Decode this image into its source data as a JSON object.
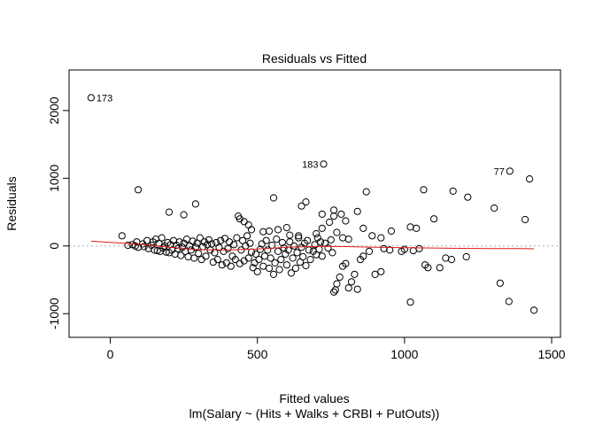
{
  "chart_data": {
    "type": "scatter",
    "title": "Residuals vs Fitted",
    "xlabel": "Fitted values",
    "subtitle": "lm(Salary ~ (Hits + Walks + CRBI + PutOuts))",
    "ylabel": "Residuals",
    "xlim": [
      -140,
      1530
    ],
    "ylim": [
      -1350,
      2600
    ],
    "x_ticks": [
      0,
      500,
      1000,
      1500
    ],
    "y_ticks": [
      -1000,
      0,
      1000,
      2000
    ],
    "x_tick_labels": [
      "0",
      "500",
      "1000",
      "1500"
    ],
    "y_tick_labels": [
      "-1000",
      "0",
      "1000",
      "2000"
    ],
    "zero_line": 0,
    "point_labels": [
      {
        "text": "173",
        "x": -65,
        "y": 2190
      },
      {
        "text": "183",
        "x": 725,
        "y": 1210
      },
      {
        "text": "77",
        "x": 1358,
        "y": 1105
      }
    ],
    "smooth": [
      [
        -65,
        70
      ],
      [
        100,
        25
      ],
      [
        200,
        -20
      ],
      [
        300,
        -55
      ],
      [
        400,
        -60
      ],
      [
        500,
        -45
      ],
      [
        600,
        -20
      ],
      [
        700,
        -5
      ],
      [
        800,
        -10
      ],
      [
        900,
        -20
      ],
      [
        1000,
        -25
      ],
      [
        1100,
        -30
      ],
      [
        1200,
        -35
      ],
      [
        1300,
        -38
      ],
      [
        1400,
        -40
      ],
      [
        1440,
        -42
      ]
    ],
    "colors": {
      "points": "#000000",
      "smooth": "#e41a1c",
      "zero_line": "#bdbdbd",
      "axis": "#000000"
    },
    "points": [
      [
        -65,
        2190
      ],
      [
        725,
        1210
      ],
      [
        1358,
        1105
      ],
      [
        95,
        830
      ],
      [
        1065,
        830
      ],
      [
        1165,
        810
      ],
      [
        870,
        800
      ],
      [
        1215,
        720
      ],
      [
        1425,
        990
      ],
      [
        1305,
        560
      ],
      [
        1100,
        400
      ],
      [
        1410,
        390
      ],
      [
        200,
        500
      ],
      [
        250,
        460
      ],
      [
        290,
        620
      ],
      [
        555,
        710
      ],
      [
        665,
        650
      ],
      [
        650,
        590
      ],
      [
        760,
        530
      ],
      [
        785,
        470
      ],
      [
        840,
        510
      ],
      [
        760,
        440
      ],
      [
        720,
        470
      ],
      [
        745,
        350
      ],
      [
        800,
        370
      ],
      [
        860,
        260
      ],
      [
        955,
        220
      ],
      [
        1020,
        280
      ],
      [
        1040,
        260
      ],
      [
        435,
        440
      ],
      [
        455,
        360
      ],
      [
        440,
        400
      ],
      [
        470,
        310
      ],
      [
        480,
        240
      ],
      [
        600,
        270
      ],
      [
        570,
        240
      ],
      [
        540,
        220
      ],
      [
        520,
        210
      ],
      [
        610,
        160
      ],
      [
        640,
        150
      ],
      [
        700,
        180
      ],
      [
        720,
        260
      ],
      [
        770,
        200
      ],
      [
        790,
        120
      ],
      [
        810,
        100
      ],
      [
        890,
        150
      ],
      [
        920,
        120
      ],
      [
        1000,
        -50
      ],
      [
        1030,
        -70
      ],
      [
        1050,
        -40
      ],
      [
        40,
        150
      ],
      [
        60,
        10
      ],
      [
        75,
        20
      ],
      [
        85,
        0
      ],
      [
        90,
        60
      ],
      [
        95,
        -20
      ],
      [
        110,
        30
      ],
      [
        115,
        -10
      ],
      [
        125,
        80
      ],
      [
        130,
        -40
      ],
      [
        140,
        10
      ],
      [
        145,
        60
      ],
      [
        150,
        -60
      ],
      [
        155,
        100
      ],
      [
        160,
        -70
      ],
      [
        165,
        40
      ],
      [
        170,
        -80
      ],
      [
        175,
        120
      ],
      [
        180,
        -30
      ],
      [
        185,
        0
      ],
      [
        190,
        -90
      ],
      [
        195,
        50
      ],
      [
        200,
        -100
      ],
      [
        205,
        20
      ],
      [
        210,
        -60
      ],
      [
        215,
        80
      ],
      [
        220,
        -120
      ],
      [
        225,
        10
      ],
      [
        230,
        -40
      ],
      [
        235,
        60
      ],
      [
        240,
        -140
      ],
      [
        245,
        -20
      ],
      [
        250,
        40
      ],
      [
        255,
        -80
      ],
      [
        260,
        100
      ],
      [
        265,
        -160
      ],
      [
        270,
        0
      ],
      [
        275,
        -60
      ],
      [
        280,
        70
      ],
      [
        285,
        -180
      ],
      [
        290,
        -20
      ],
      [
        295,
        40
      ],
      [
        300,
        -110
      ],
      [
        305,
        120
      ],
      [
        310,
        -200
      ],
      [
        315,
        -10
      ],
      [
        320,
        60
      ],
      [
        325,
        -150
      ],
      [
        330,
        20
      ],
      [
        335,
        90
      ],
      [
        340,
        -60
      ],
      [
        345,
        30
      ],
      [
        350,
        -240
      ],
      [
        355,
        -100
      ],
      [
        360,
        50
      ],
      [
        365,
        -200
      ],
      [
        370,
        -20
      ],
      [
        375,
        80
      ],
      [
        380,
        -280
      ],
      [
        385,
        -80
      ],
      [
        390,
        110
      ],
      [
        395,
        -250
      ],
      [
        400,
        -40
      ],
      [
        405,
        60
      ],
      [
        410,
        -300
      ],
      [
        415,
        -150
      ],
      [
        420,
        20
      ],
      [
        425,
        -200
      ],
      [
        430,
        120
      ],
      [
        440,
        -260
      ],
      [
        445,
        -60
      ],
      [
        450,
        80
      ],
      [
        455,
        -220
      ],
      [
        460,
        0
      ],
      [
        465,
        150
      ],
      [
        470,
        -180
      ],
      [
        475,
        40
      ],
      [
        480,
        -90
      ],
      [
        485,
        -320
      ],
      [
        490,
        -250
      ],
      [
        495,
        -120
      ],
      [
        500,
        -380
      ],
      [
        505,
        -200
      ],
      [
        510,
        -50
      ],
      [
        515,
        30
      ],
      [
        520,
        -300
      ],
      [
        525,
        -150
      ],
      [
        530,
        80
      ],
      [
        535,
        -60
      ],
      [
        540,
        -330
      ],
      [
        545,
        -180
      ],
      [
        550,
        10
      ],
      [
        555,
        -420
      ],
      [
        560,
        -250
      ],
      [
        565,
        100
      ],
      [
        570,
        -80
      ],
      [
        575,
        -350
      ],
      [
        580,
        -200
      ],
      [
        585,
        50
      ],
      [
        590,
        -30
      ],
      [
        595,
        -120
      ],
      [
        600,
        -280
      ],
      [
        605,
        -60
      ],
      [
        610,
        60
      ],
      [
        615,
        -400
      ],
      [
        620,
        -180
      ],
      [
        625,
        0
      ],
      [
        630,
        -330
      ],
      [
        635,
        -100
      ],
      [
        640,
        120
      ],
      [
        645,
        -240
      ],
      [
        650,
        -20
      ],
      [
        655,
        -160
      ],
      [
        660,
        40
      ],
      [
        665,
        -290
      ],
      [
        670,
        80
      ],
      [
        675,
        -60
      ],
      [
        680,
        -200
      ],
      [
        690,
        -80
      ],
      [
        695,
        20
      ],
      [
        700,
        -130
      ],
      [
        705,
        120
      ],
      [
        710,
        -50
      ],
      [
        715,
        60
      ],
      [
        720,
        -150
      ],
      [
        730,
        40
      ],
      [
        740,
        -30
      ],
      [
        750,
        90
      ],
      [
        755,
        -100
      ],
      [
        760,
        -680
      ],
      [
        765,
        -650
      ],
      [
        770,
        -560
      ],
      [
        780,
        -460
      ],
      [
        790,
        -300
      ],
      [
        800,
        -260
      ],
      [
        810,
        -620
      ],
      [
        820,
        -530
      ],
      [
        830,
        -420
      ],
      [
        840,
        -640
      ],
      [
        850,
        -200
      ],
      [
        860,
        -150
      ],
      [
        880,
        -80
      ],
      [
        900,
        -420
      ],
      [
        920,
        -380
      ],
      [
        930,
        -40
      ],
      [
        950,
        -60
      ],
      [
        990,
        -80
      ],
      [
        1020,
        -830
      ],
      [
        1070,
        -280
      ],
      [
        1080,
        -320
      ],
      [
        1120,
        -320
      ],
      [
        1140,
        -180
      ],
      [
        1160,
        -200
      ],
      [
        1210,
        -160
      ],
      [
        1325,
        -550
      ],
      [
        1355,
        -820
      ],
      [
        1440,
        -950
      ]
    ]
  }
}
